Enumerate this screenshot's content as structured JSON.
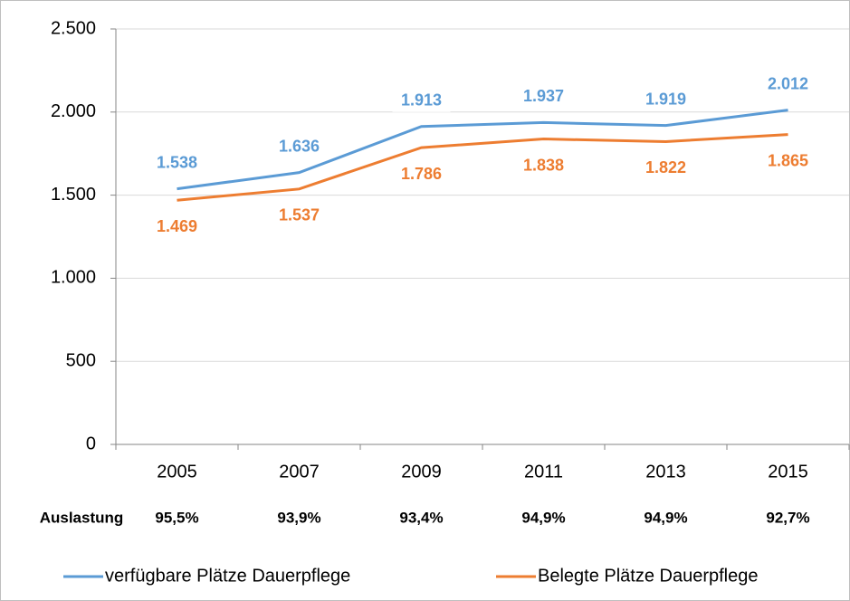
{
  "chart_data": {
    "type": "line",
    "categories": [
      "2005",
      "2007",
      "2009",
      "2011",
      "2013",
      "2015"
    ],
    "series": [
      {
        "name": "verfügbare Plätze Dauerpflege",
        "color": "#5b9bd5",
        "values": [
          1538,
          1636,
          1913,
          1937,
          1919,
          2012
        ],
        "value_labels": [
          "1.538",
          "1.636",
          "1.913",
          "1.937",
          "1.919",
          "2.012"
        ]
      },
      {
        "name": "Belegte Plätze Dauerpflege",
        "color": "#ed7d31",
        "values": [
          1469,
          1537,
          1786,
          1838,
          1822,
          1865
        ],
        "value_labels": [
          "1.469",
          "1.537",
          "1.786",
          "1.838",
          "1.822",
          "1.865"
        ]
      }
    ],
    "ylim": [
      0,
      2500
    ],
    "yticks": [
      0,
      500,
      {
        "value": 1000,
        "label": "1.000"
      },
      {
        "value": 1500,
        "label": "1.500"
      },
      {
        "value": 2000,
        "label": "2.000"
      },
      {
        "value": 2500,
        "label": "2.500"
      }
    ],
    "grid": true,
    "legend": "bottom",
    "auslastung": {
      "label": "Auslastung",
      "values": [
        "95,5%",
        "93,9%",
        "93,4%",
        "94,9%",
        "94,9%",
        "92,7%"
      ]
    }
  }
}
